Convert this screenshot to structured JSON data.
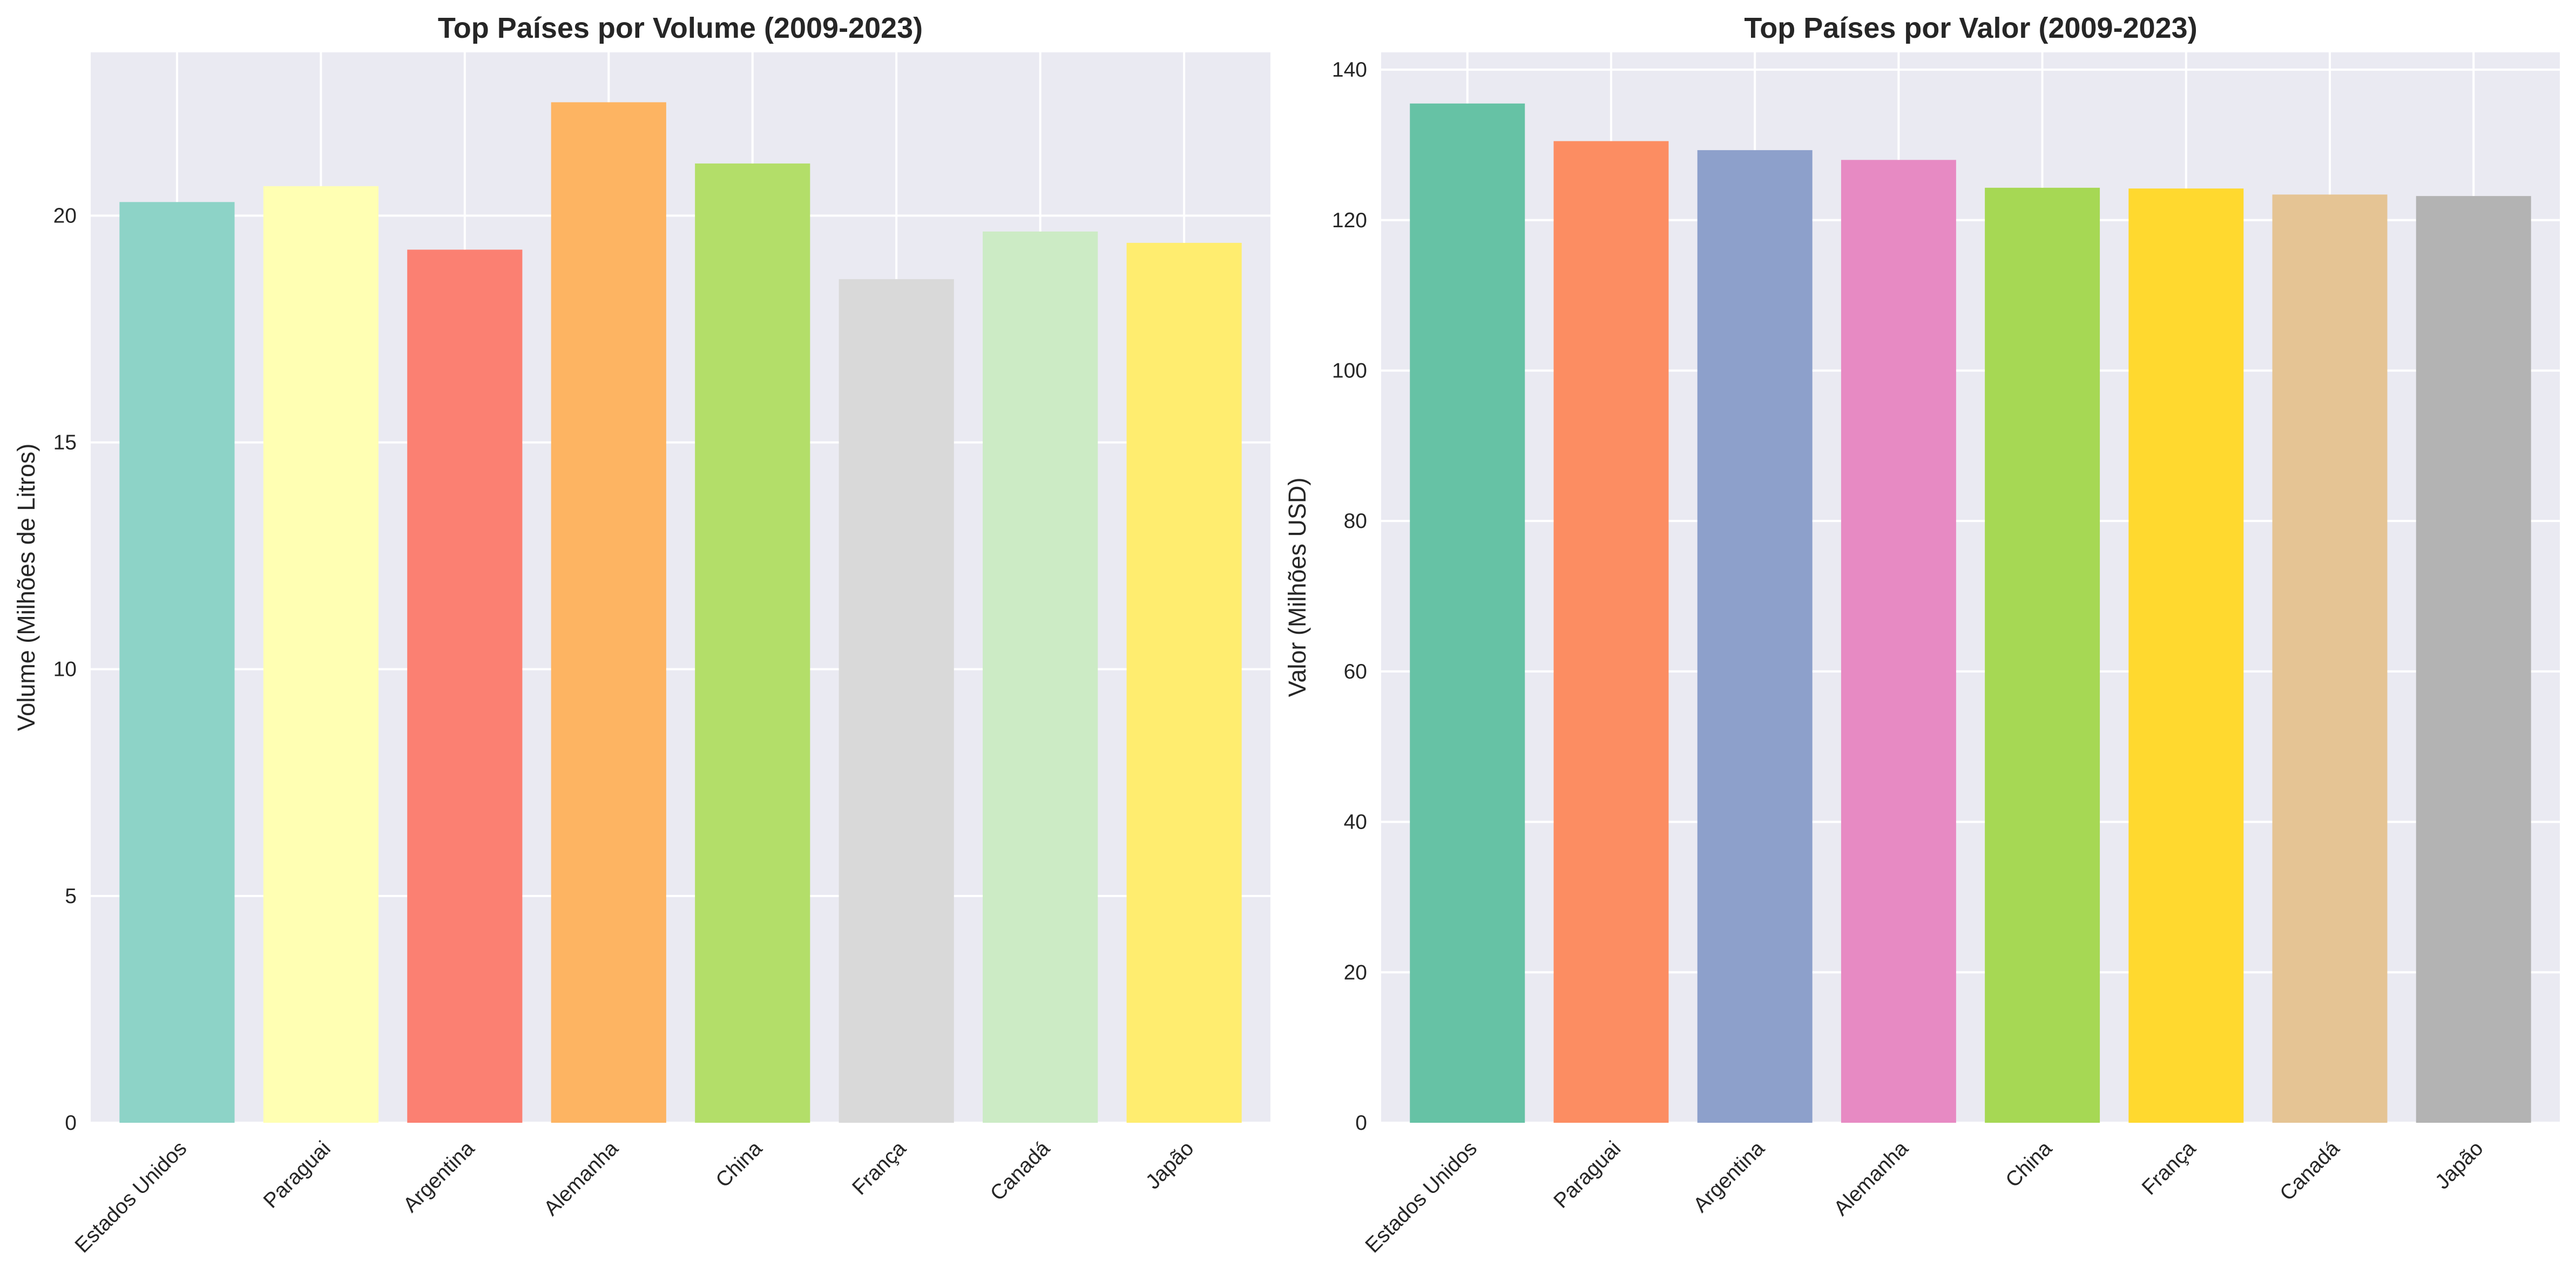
{
  "chart_data": [
    {
      "type": "bar",
      "title": "Top Países por Volume (2009-2023)",
      "xlabel": "",
      "ylabel": "Volume (Milhões de Litros)",
      "categories": [
        "Estados Unidos",
        "Paraguai",
        "Argentina",
        "Alemanha",
        "China",
        "França",
        "Canadá",
        "Japão"
      ],
      "values": [
        20.3,
        20.65,
        19.25,
        22.5,
        21.15,
        18.6,
        19.65,
        19.4
      ],
      "colors": [
        "#8dd3c7",
        "#ffffb3",
        "#fb8072",
        "#fdb462",
        "#b3de69",
        "#d9d9d9",
        "#ccebc5",
        "#ffed6f"
      ],
      "ylim": [
        0,
        23.6
      ],
      "yticks": [
        "0",
        "5",
        "10",
        "15",
        "20"
      ],
      "grid": true,
      "background": "#eaeaf2"
    },
    {
      "type": "bar",
      "title": "Top Países por Valor (2009-2023)",
      "xlabel": "",
      "ylabel": "Valor (Milhões USD)",
      "categories": [
        "Estados Unidos",
        "Paraguai",
        "Argentina",
        "Alemanha",
        "China",
        "França",
        "Canadá",
        "Japão"
      ],
      "values": [
        135.5,
        130.5,
        129.3,
        128,
        124.3,
        124.2,
        123.4,
        123.2
      ],
      "colors": [
        "#66c2a5",
        "#fc8d62",
        "#8da0cb",
        "#e78ac3",
        "#a6d854",
        "#ffd92f",
        "#e5c494",
        "#b3b3b3"
      ],
      "ylim": [
        0,
        142.3
      ],
      "yticks": [
        "0",
        "20",
        "40",
        "60",
        "80",
        "100",
        "120",
        "140"
      ],
      "grid": true,
      "background": "#eaeaf2"
    }
  ]
}
